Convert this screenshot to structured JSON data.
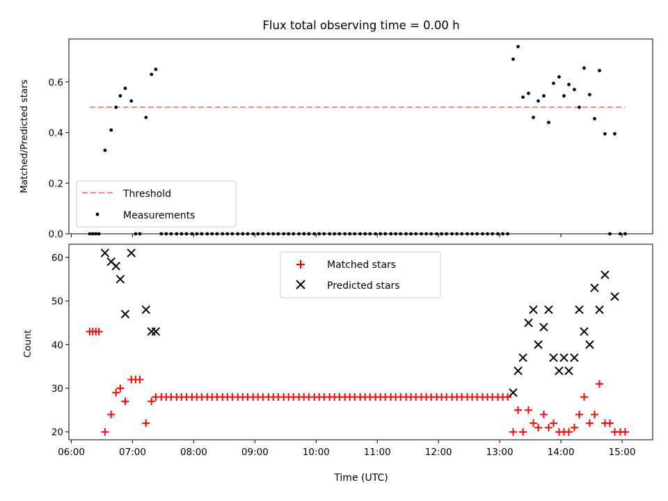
{
  "figure": {
    "title": "Flux total observing time = 0.00 h"
  },
  "chart_data": [
    {
      "type": "scatter",
      "ylabel": "Matched/Predicted stars",
      "xlim": [
        5.96,
        15.5
      ],
      "ylim": [
        0.0,
        0.77
      ],
      "yticks": [
        0.0,
        0.2,
        0.4,
        0.6
      ],
      "ytick_labels": [
        "0.0",
        "0.2",
        "0.4",
        "0.6"
      ],
      "legend_position": "lower-left",
      "grid": false,
      "series": [
        {
          "name": "Threshold",
          "kind": "line",
          "color": "#ff7f7f",
          "dash": true,
          "x": [
            6.3,
            15.05
          ],
          "y": [
            0.5,
            0.5
          ]
        },
        {
          "name": "Measurements",
          "kind": "dot",
          "color": "#000000",
          "x": [
            6.3,
            6.35,
            6.4,
            6.45,
            6.55,
            6.65,
            6.73,
            6.8,
            6.88,
            6.98,
            7.05,
            7.12,
            7.22,
            7.31,
            7.38,
            7.47,
            7.55,
            7.63,
            7.72,
            7.8,
            7.88,
            7.97,
            8.05,
            8.13,
            8.22,
            8.3,
            8.38,
            8.47,
            8.55,
            8.63,
            8.72,
            8.8,
            8.88,
            8.97,
            9.05,
            9.13,
            9.22,
            9.3,
            9.38,
            9.47,
            9.55,
            9.63,
            9.72,
            9.8,
            9.88,
            9.97,
            10.05,
            10.13,
            10.22,
            10.3,
            10.38,
            10.47,
            10.55,
            10.63,
            10.72,
            10.8,
            10.88,
            10.97,
            11.05,
            11.13,
            11.22,
            11.3,
            11.38,
            11.47,
            11.55,
            11.63,
            11.72,
            11.8,
            11.88,
            11.97,
            12.05,
            12.13,
            12.22,
            12.3,
            12.38,
            12.47,
            12.55,
            12.63,
            12.72,
            12.8,
            12.88,
            12.97,
            13.05,
            13.13,
            13.22,
            13.3,
            13.38,
            13.47,
            13.55,
            13.63,
            13.72,
            13.8,
            13.88,
            13.97,
            14.05,
            14.13,
            14.22,
            14.3,
            14.38,
            14.47,
            14.55,
            14.63,
            14.72,
            14.8,
            14.88,
            14.97,
            15.05
          ],
          "y": [
            0,
            0,
            0,
            0,
            0.33,
            0.41,
            0.5,
            0.545,
            0.575,
            0.525,
            0,
            0,
            0.46,
            0.63,
            0.65,
            0,
            0,
            0,
            0,
            0,
            0,
            0,
            0,
            0,
            0,
            0,
            0,
            0,
            0,
            0,
            0,
            0,
            0,
            0,
            0,
            0,
            0,
            0,
            0,
            0,
            0,
            0,
            0,
            0,
            0,
            0,
            0,
            0,
            0,
            0,
            0,
            0,
            0,
            0,
            0,
            0,
            0,
            0,
            0,
            0,
            0,
            0,
            0,
            0,
            0,
            0,
            0,
            0,
            0,
            0,
            0,
            0,
            0,
            0,
            0,
            0,
            0,
            0,
            0,
            0,
            0,
            0,
            0,
            0,
            0.69,
            0.74,
            0.54,
            0.555,
            0.46,
            0.525,
            0.545,
            0.44,
            0.595,
            0.62,
            0.545,
            0.59,
            0.57,
            0.5,
            0.655,
            0.55,
            0.455,
            0.645,
            0.395,
            0,
            0.395,
            0,
            0
          ]
        }
      ]
    },
    {
      "type": "scatter",
      "xlabel": "Time (UTC)",
      "ylabel": "Count",
      "xlim": [
        5.96,
        15.5
      ],
      "ylim": [
        18.2,
        63.0
      ],
      "yticks": [
        20,
        30,
        40,
        50,
        60
      ],
      "ytick_labels": [
        "20",
        "30",
        "40",
        "50",
        "60"
      ],
      "xticks": [
        6,
        7,
        8,
        9,
        10,
        11,
        12,
        13,
        14,
        15
      ],
      "xtick_labels": [
        "06:00",
        "07:00",
        "08:00",
        "09:00",
        "10:00",
        "11:00",
        "12:00",
        "13:00",
        "14:00",
        "15:00"
      ],
      "legend_position": "upper-center",
      "grid": false,
      "series": [
        {
          "name": "Matched stars",
          "kind": "plus",
          "color": "#ff0000",
          "x": [
            6.3,
            6.35,
            6.4,
            6.45,
            6.55,
            6.65,
            6.73,
            6.8,
            6.88,
            6.98,
            7.05,
            7.12,
            7.22,
            7.31,
            7.38,
            7.47,
            7.55,
            7.63,
            7.72,
            7.8,
            7.88,
            7.97,
            8.05,
            8.13,
            8.22,
            8.3,
            8.38,
            8.47,
            8.55,
            8.63,
            8.72,
            8.8,
            8.88,
            8.97,
            9.05,
            9.13,
            9.22,
            9.3,
            9.38,
            9.47,
            9.55,
            9.63,
            9.72,
            9.8,
            9.88,
            9.97,
            10.05,
            10.13,
            10.22,
            10.3,
            10.38,
            10.47,
            10.55,
            10.63,
            10.72,
            10.8,
            10.88,
            10.97,
            11.05,
            11.13,
            11.22,
            11.3,
            11.38,
            11.47,
            11.55,
            11.63,
            11.72,
            11.8,
            11.88,
            11.97,
            12.05,
            12.13,
            12.22,
            12.3,
            12.38,
            12.47,
            12.55,
            12.63,
            12.72,
            12.8,
            12.88,
            12.97,
            13.05,
            13.13,
            13.22,
            13.3,
            13.38,
            13.47,
            13.55,
            13.63,
            13.72,
            13.8,
            13.88,
            13.97,
            14.05,
            14.13,
            14.22,
            14.3,
            14.38,
            14.47,
            14.55,
            14.63,
            14.72,
            14.8,
            14.88,
            14.97,
            15.05
          ],
          "y": [
            43,
            43,
            43,
            43,
            20,
            24,
            29,
            30,
            27,
            32,
            32,
            32,
            22,
            27,
            28,
            28,
            28,
            28,
            28,
            28,
            28,
            28,
            28,
            28,
            28,
            28,
            28,
            28,
            28,
            28,
            28,
            28,
            28,
            28,
            28,
            28,
            28,
            28,
            28,
            28,
            28,
            28,
            28,
            28,
            28,
            28,
            28,
            28,
            28,
            28,
            28,
            28,
            28,
            28,
            28,
            28,
            28,
            28,
            28,
            28,
            28,
            28,
            28,
            28,
            28,
            28,
            28,
            28,
            28,
            28,
            28,
            28,
            28,
            28,
            28,
            28,
            28,
            28,
            28,
            28,
            28,
            28,
            28,
            28,
            20,
            25,
            20,
            25,
            22,
            21,
            24,
            21,
            22,
            20,
            20,
            20,
            21,
            24,
            28,
            22,
            24,
            31,
            22,
            22,
            20,
            20,
            20
          ]
        },
        {
          "name": "Predicted stars",
          "kind": "cross",
          "color": "#000000",
          "x": [
            6.55,
            6.65,
            6.73,
            6.8,
            6.88,
            6.98,
            7.22,
            7.31,
            7.38,
            13.22,
            13.3,
            13.38,
            13.47,
            13.55,
            13.63,
            13.72,
            13.8,
            13.88,
            13.97,
            14.05,
            14.13,
            14.22,
            14.3,
            14.38,
            14.47,
            14.55,
            14.63,
            14.72,
            14.88
          ],
          "y": [
            61,
            59,
            58,
            55,
            47,
            61,
            48,
            43,
            43,
            29,
            34,
            37,
            45,
            48,
            40,
            44,
            48,
            37,
            34,
            37,
            34,
            37,
            48,
            43,
            40,
            53,
            48,
            56,
            51
          ]
        }
      ]
    }
  ]
}
